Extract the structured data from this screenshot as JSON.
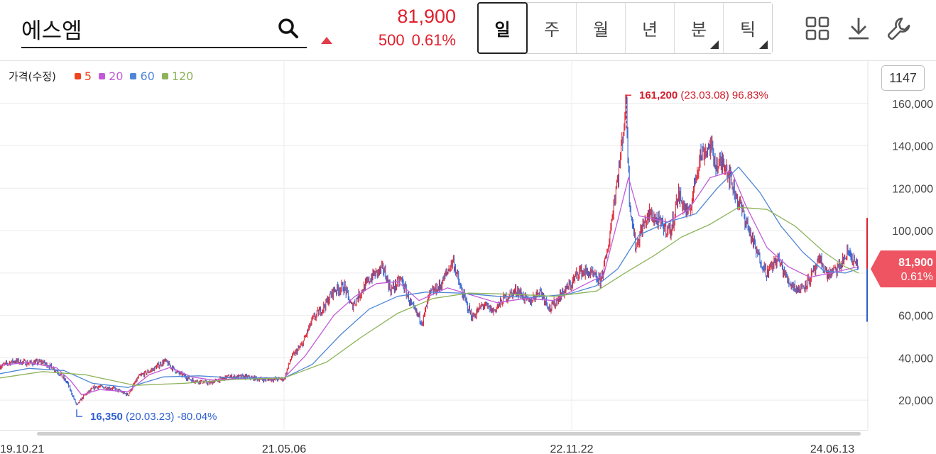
{
  "search": {
    "value": "에스엠"
  },
  "quote": {
    "price": "81,900",
    "change": "500",
    "change_pct": "0.61%",
    "direction": "up",
    "color": "#e0202e"
  },
  "periods": [
    {
      "label": "일",
      "active": true,
      "submenu": false
    },
    {
      "label": "주",
      "active": false,
      "submenu": false
    },
    {
      "label": "월",
      "active": false,
      "submenu": false
    },
    {
      "label": "년",
      "active": false,
      "submenu": false
    },
    {
      "label": "분",
      "active": false,
      "submenu": true
    },
    {
      "label": "틱",
      "active": false,
      "submenu": true
    }
  ],
  "toolbar": {
    "icons": [
      "layout-grid-icon",
      "download-icon",
      "settings-wrench-icon"
    ]
  },
  "legend": {
    "label": "가격(수정)",
    "items": [
      {
        "name": "5",
        "color": "#f0441e"
      },
      {
        "name": "20",
        "color": "#c25ad8"
      },
      {
        "name": "60",
        "color": "#4f86d6"
      },
      {
        "name": "120",
        "color": "#8db35a"
      }
    ]
  },
  "count_badge": "1147",
  "chart_data": {
    "type": "line",
    "ylim": [
      6000,
      180000
    ],
    "y_ticks": [
      20000,
      40000,
      60000,
      80000,
      100000,
      120000,
      140000,
      160000
    ],
    "y_tick_labels": [
      "20,000",
      "40,000",
      "60,000",
      "80,000",
      "100,000",
      "120,000",
      "140,000",
      "160,000"
    ],
    "x_tick_labels": [
      "19.10.21",
      "21.05.06",
      "22.11.22",
      "24.06.13"
    ],
    "current": {
      "price": 81900,
      "label": "81,900",
      "pct_label": "0.61%"
    },
    "annotations": [
      {
        "type": "high",
        "value_label": "161,200",
        "date_label": "(23.03.08)",
        "pct_label": "96.83%"
      },
      {
        "type": "low",
        "value_label": "16,350",
        "date_label": "(20.03.23)",
        "pct_label": "-80.04%"
      }
    ],
    "series": [
      {
        "name": "price",
        "color": "#e0202e",
        "points": [
          [
            0,
            36000
          ],
          [
            20,
            38500
          ],
          [
            40,
            37500
          ],
          [
            60,
            38000
          ],
          [
            80,
            34000
          ],
          [
            95,
            28000
          ],
          [
            108,
            17500
          ],
          [
            118,
            22000
          ],
          [
            135,
            26500
          ],
          [
            160,
            25500
          ],
          [
            180,
            22500
          ],
          [
            195,
            31000
          ],
          [
            215,
            34500
          ],
          [
            232,
            38500
          ],
          [
            250,
            33000
          ],
          [
            270,
            29500
          ],
          [
            295,
            28000
          ],
          [
            320,
            31000
          ],
          [
            345,
            31000
          ],
          [
            370,
            29800
          ],
          [
            400,
            30000
          ],
          [
            410,
            40000
          ],
          [
            425,
            46000
          ],
          [
            440,
            58000
          ],
          [
            458,
            65000
          ],
          [
            470,
            72000
          ],
          [
            485,
            73500
          ],
          [
            495,
            64000
          ],
          [
            510,
            72000
          ],
          [
            525,
            79000
          ],
          [
            540,
            82000
          ],
          [
            550,
            72000
          ],
          [
            565,
            77000
          ],
          [
            580,
            64000
          ],
          [
            595,
            57000
          ],
          [
            605,
            70000
          ],
          [
            620,
            74000
          ],
          [
            638,
            86000
          ],
          [
            648,
            73000
          ],
          [
            665,
            59000
          ],
          [
            680,
            65000
          ],
          [
            695,
            62000
          ],
          [
            710,
            68000
          ],
          [
            728,
            72000
          ],
          [
            745,
            66000
          ],
          [
            760,
            72000
          ],
          [
            775,
            63000
          ],
          [
            790,
            70000
          ],
          [
            805,
            75000
          ],
          [
            815,
            81000
          ],
          [
            830,
            80000
          ],
          [
            845,
            76000
          ],
          [
            855,
            89000
          ],
          [
            865,
            115000
          ],
          [
            872,
            130000
          ],
          [
            882,
            161200
          ],
          [
            886,
            116000
          ],
          [
            895,
            92000
          ],
          [
            905,
            102000
          ],
          [
            915,
            108000
          ],
          [
            930,
            103000
          ],
          [
            945,
            100000
          ],
          [
            955,
            117000
          ],
          [
            970,
            107000
          ],
          [
            985,
            135000
          ],
          [
            1000,
            140000
          ],
          [
            1010,
            130000
          ],
          [
            1020,
            133000
          ],
          [
            1035,
            118000
          ],
          [
            1050,
            105000
          ],
          [
            1065,
            90000
          ],
          [
            1080,
            80000
          ],
          [
            1095,
            87000
          ],
          [
            1110,
            76000
          ],
          [
            1125,
            72000
          ],
          [
            1140,
            77000
          ],
          [
            1155,
            86000
          ],
          [
            1165,
            79000
          ],
          [
            1180,
            82000
          ],
          [
            1195,
            90000
          ],
          [
            1209,
            81900
          ]
        ]
      },
      {
        "name": "20",
        "color": "#c25ad8",
        "points": [
          [
            0,
            36500
          ],
          [
            40,
            37800
          ],
          [
            80,
            35200
          ],
          [
            100,
            29000
          ],
          [
            115,
            22500
          ],
          [
            140,
            25000
          ],
          [
            180,
            24000
          ],
          [
            210,
            32000
          ],
          [
            240,
            35500
          ],
          [
            270,
            31000
          ],
          [
            300,
            29500
          ],
          [
            350,
            30500
          ],
          [
            400,
            30500
          ],
          [
            430,
            41000
          ],
          [
            470,
            60000
          ],
          [
            500,
            69000
          ],
          [
            530,
            75000
          ],
          [
            560,
            76000
          ],
          [
            590,
            67000
          ],
          [
            630,
            73000
          ],
          [
            660,
            70000
          ],
          [
            700,
            66000
          ],
          [
            740,
            68000
          ],
          [
            780,
            67000
          ],
          [
            820,
            74000
          ],
          [
            850,
            79000
          ],
          [
            870,
            105000
          ],
          [
            885,
            125000
          ],
          [
            900,
            107000
          ],
          [
            940,
            104000
          ],
          [
            970,
            110000
          ],
          [
            1000,
            125000
          ],
          [
            1030,
            128000
          ],
          [
            1050,
            112000
          ],
          [
            1080,
            92000
          ],
          [
            1110,
            83000
          ],
          [
            1140,
            78000
          ],
          [
            1170,
            80000
          ],
          [
            1209,
            83000
          ]
        ]
      },
      {
        "name": "60",
        "color": "#4f86d6",
        "points": [
          [
            0,
            32500
          ],
          [
            40,
            35000
          ],
          [
            90,
            34000
          ],
          [
            130,
            28000
          ],
          [
            180,
            26000
          ],
          [
            230,
            31000
          ],
          [
            280,
            31500
          ],
          [
            330,
            30500
          ],
          [
            400,
            30500
          ],
          [
            440,
            37000
          ],
          [
            480,
            51000
          ],
          [
            520,
            63000
          ],
          [
            560,
            69000
          ],
          [
            600,
            71000
          ],
          [
            650,
            70500
          ],
          [
            700,
            69000
          ],
          [
            750,
            68500
          ],
          [
            800,
            70000
          ],
          [
            840,
            74000
          ],
          [
            870,
            82000
          ],
          [
            900,
            98000
          ],
          [
            940,
            104000
          ],
          [
            980,
            108000
          ],
          [
            1010,
            120000
          ],
          [
            1040,
            130000
          ],
          [
            1070,
            118000
          ],
          [
            1100,
            102000
          ],
          [
            1130,
            90000
          ],
          [
            1160,
            81000
          ],
          [
            1190,
            80000
          ],
          [
            1209,
            82000
          ]
        ]
      },
      {
        "name": "120",
        "color": "#8db35a",
        "points": [
          [
            0,
            30500
          ],
          [
            60,
            33500
          ],
          [
            120,
            32000
          ],
          [
            190,
            27000
          ],
          [
            260,
            28000
          ],
          [
            330,
            29800
          ],
          [
            400,
            30500
          ],
          [
            460,
            38000
          ],
          [
            510,
            50000
          ],
          [
            560,
            61000
          ],
          [
            610,
            68000
          ],
          [
            660,
            70500
          ],
          [
            720,
            70000
          ],
          [
            780,
            69000
          ],
          [
            840,
            71500
          ],
          [
            880,
            80000
          ],
          [
            920,
            88000
          ],
          [
            960,
            97000
          ],
          [
            1000,
            103000
          ],
          [
            1040,
            111000
          ],
          [
            1080,
            110000
          ],
          [
            1120,
            102000
          ],
          [
            1160,
            90000
          ],
          [
            1190,
            83000
          ],
          [
            1209,
            80000
          ]
        ]
      }
    ]
  }
}
